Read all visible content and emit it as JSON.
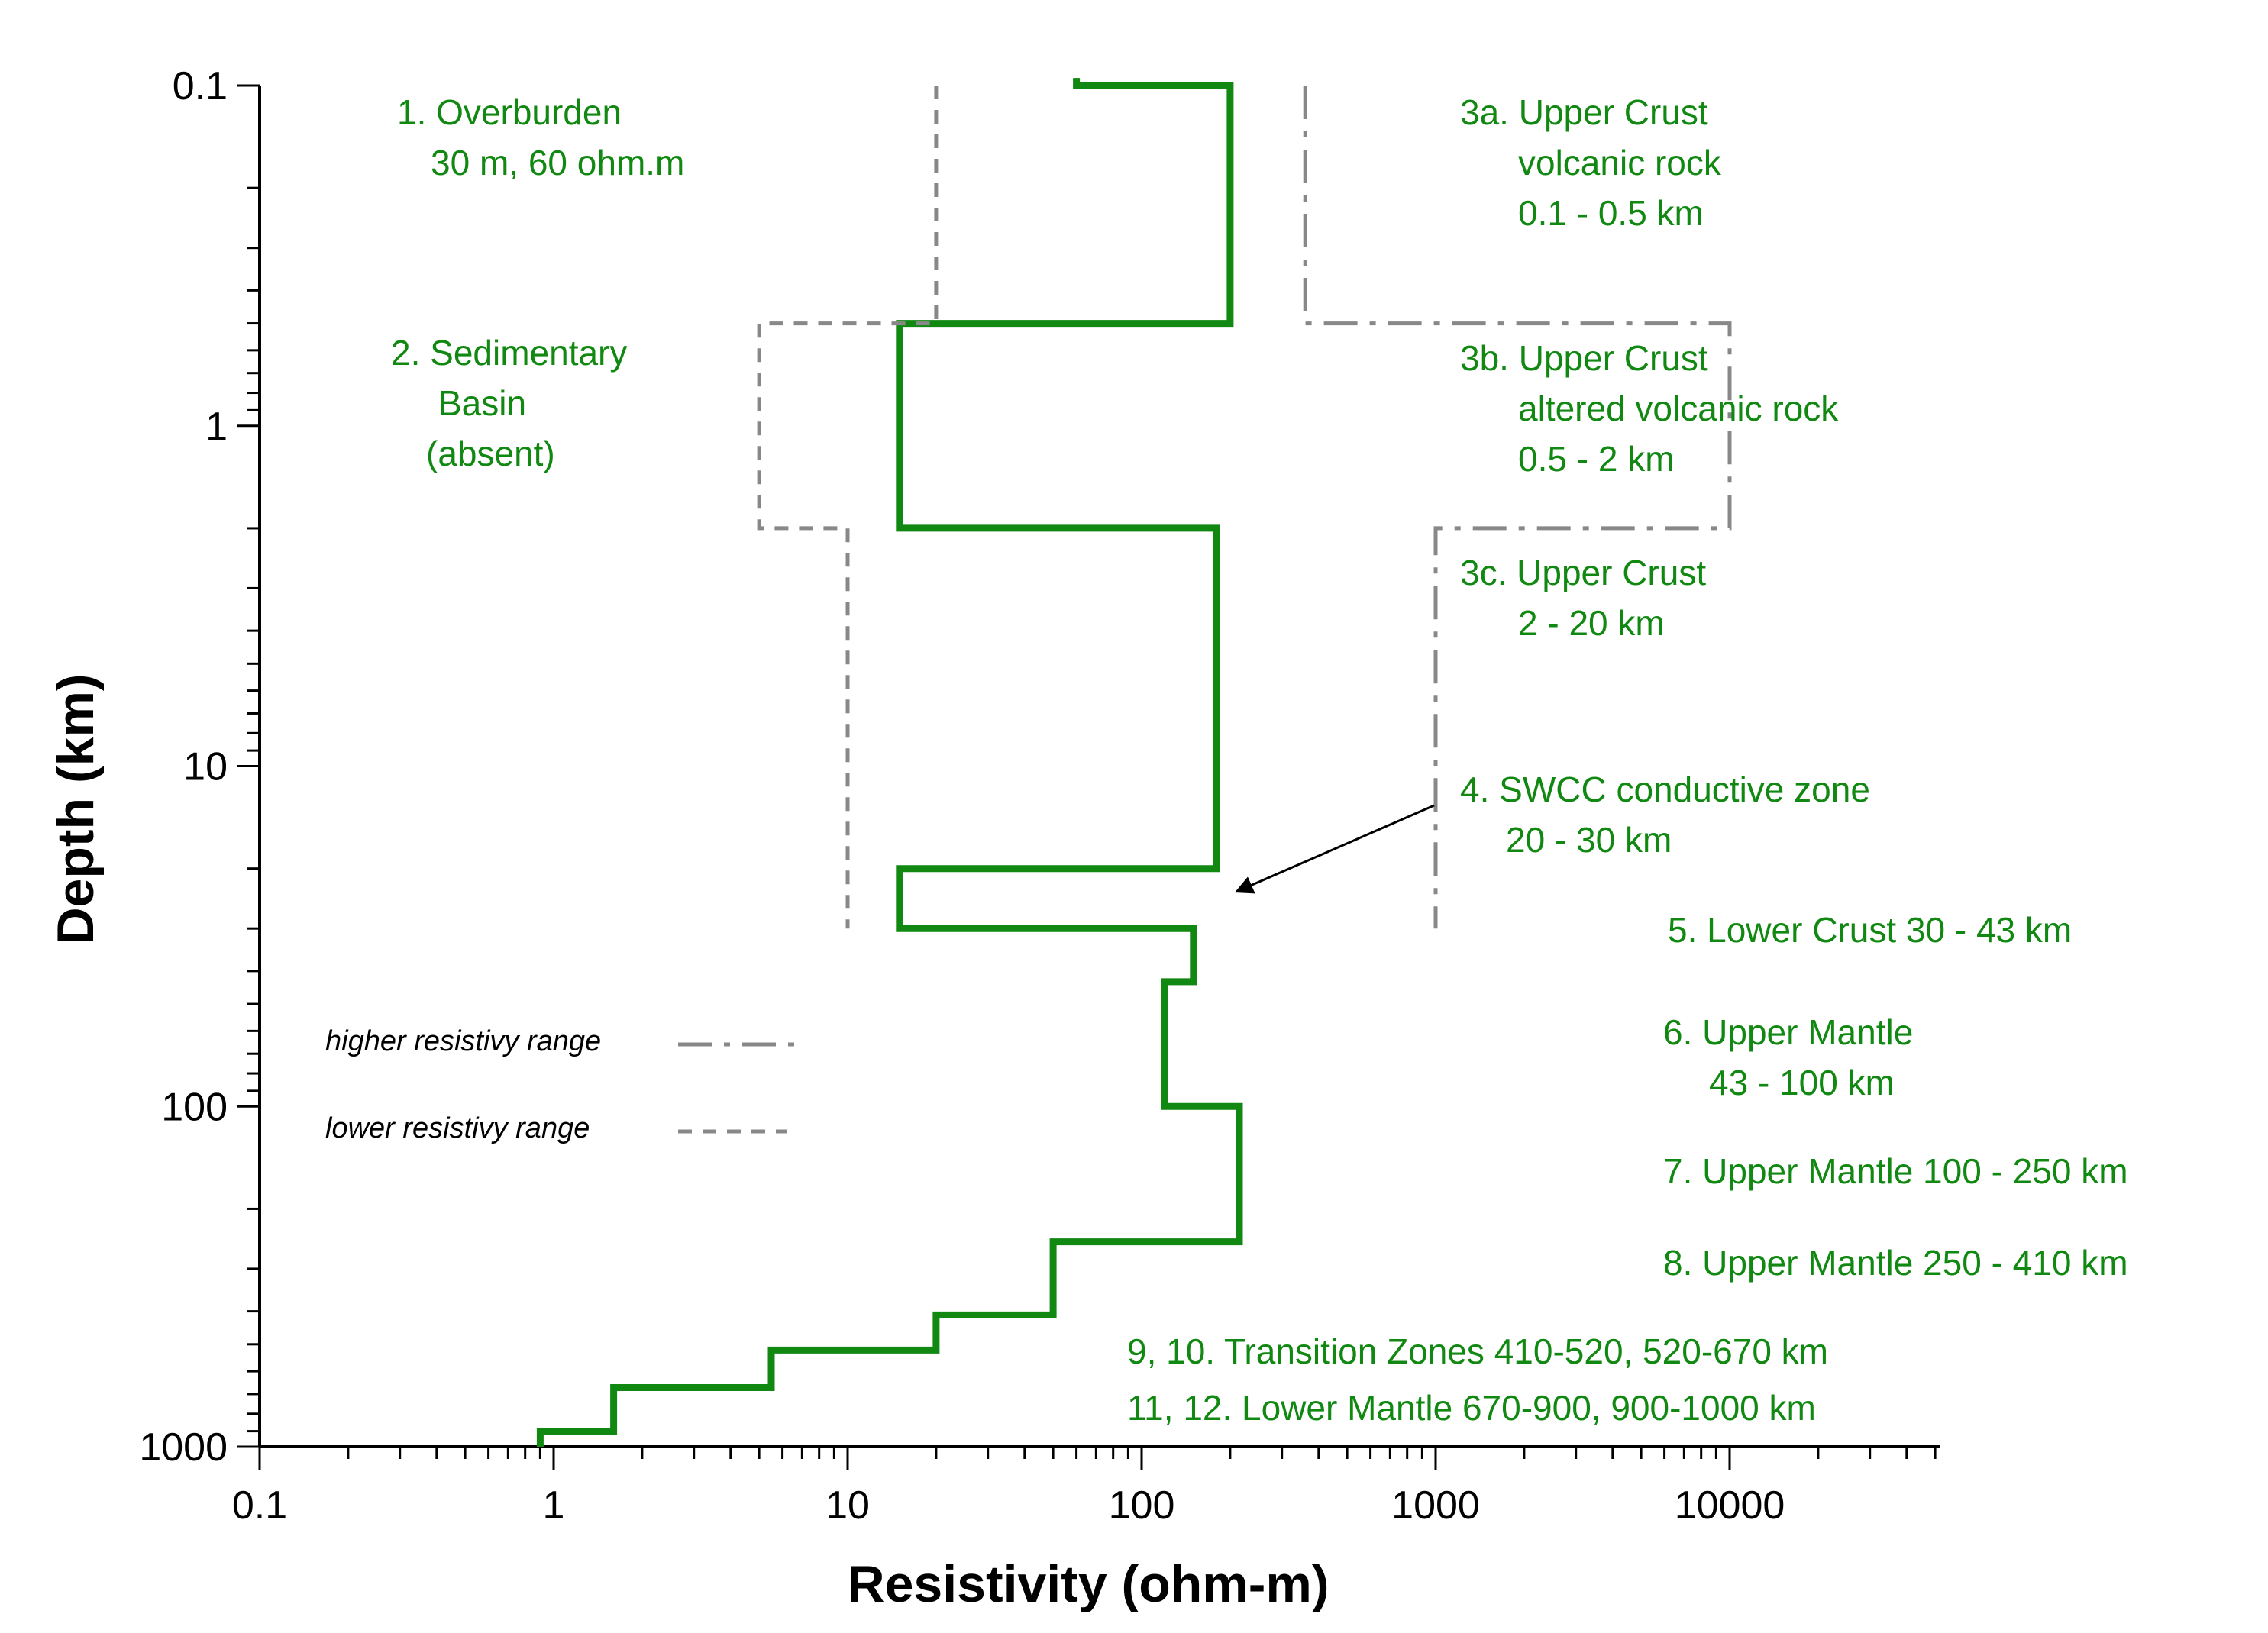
{
  "chart_data": {
    "type": "line",
    "xlabel": "Resistivity (ohm-m)",
    "ylabel": "Depth (km)",
    "x_scale": "log",
    "y_scale": "log",
    "y_inverted": true,
    "xlim": [
      0.1,
      50000
    ],
    "ylim": [
      0.1,
      1000
    ],
    "x_ticks": [
      "0.1",
      "1",
      "10",
      "100",
      "1000",
      "10000"
    ],
    "y_ticks": [
      "0.1",
      "1",
      "10",
      "100",
      "1000"
    ],
    "grid": false,
    "colors": {
      "main": "#118811",
      "range": "#888888",
      "text": "#118811",
      "arrow": "#000000"
    },
    "series": [
      {
        "line_style": "solid",
        "points": [
          [
            60,
            0.095
          ],
          [
            60,
            0.1
          ],
          [
            200,
            0.1
          ],
          [
            200,
            0.5
          ],
          [
            15,
            0.5
          ],
          [
            15,
            2
          ],
          [
            180,
            2
          ],
          [
            180,
            20
          ],
          [
            15,
            20
          ],
          [
            15,
            30
          ],
          [
            150,
            30
          ],
          [
            150,
            43
          ],
          [
            120,
            43
          ],
          [
            120,
            100
          ],
          [
            215,
            100
          ],
          [
            215,
            250
          ],
          [
            50,
            250
          ],
          [
            50,
            410
          ],
          [
            20,
            410
          ],
          [
            20,
            520
          ],
          [
            5.5,
            520
          ],
          [
            5.5,
            670
          ],
          [
            1.6,
            670
          ],
          [
            1.6,
            900
          ],
          [
            0.9,
            900
          ],
          [
            0.9,
            1000
          ]
        ]
      },
      {
        "line_style": "dash-dot",
        "points": [
          [
            360,
            0.1
          ],
          [
            360,
            0.5
          ],
          [
            10000,
            0.5
          ],
          [
            10000,
            2
          ],
          [
            1000,
            2
          ],
          [
            1000,
            30
          ]
        ]
      },
      {
        "line_style": "dash",
        "points": [
          [
            20,
            0.1
          ],
          [
            20,
            0.5
          ],
          [
            5,
            0.5
          ],
          [
            5,
            2
          ],
          [
            10,
            2
          ],
          [
            10,
            30
          ]
        ]
      }
    ],
    "legend": [
      {
        "label": "higher resistivy range",
        "line_style": "dash-dot"
      },
      {
        "label": "lower resistivy range",
        "line_style": "dash"
      }
    ],
    "annotations": [
      {
        "lines": [
          "1. Overburden",
          "30 m, 60 ohm.m"
        ]
      },
      {
        "lines": [
          "2. Sedimentary",
          "Basin",
          "(absent)"
        ]
      },
      {
        "lines": [
          "3a. Upper Crust",
          "volcanic rock",
          "0.1 - 0.5 km"
        ]
      },
      {
        "lines": [
          "3b. Upper Crust",
          "altered volcanic rock",
          "0.5 - 2 km"
        ]
      },
      {
        "lines": [
          "3c. Upper Crust",
          "2 - 20 km"
        ]
      },
      {
        "lines": [
          "4. SWCC conductive zone",
          "20 - 30 km"
        ]
      },
      {
        "lines": [
          "5. Lower Crust 30 - 43 km"
        ]
      },
      {
        "lines": [
          "6. Upper Mantle",
          "43 - 100 km"
        ]
      },
      {
        "lines": [
          "7. Upper Mantle 100 - 250 km"
        ]
      },
      {
        "lines": [
          "8. Upper Mantle  250 - 410 km"
        ]
      },
      {
        "lines": [
          "9, 10. Transition Zones 410-520, 520-670 km"
        ]
      },
      {
        "lines": [
          "11, 12. Lower Mantle 670-900, 900-1000 km"
        ]
      }
    ]
  }
}
